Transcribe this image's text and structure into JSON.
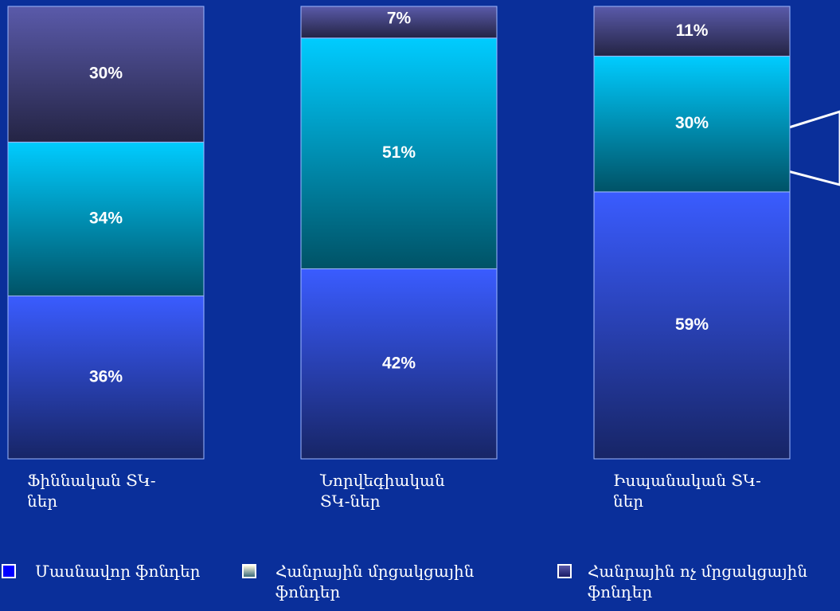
{
  "chart_data": {
    "type": "stacked_bar",
    "categories": [
      "Ֆիննական ՏԿ-ներ",
      "Նորվեգիական ՏԿ-ներ",
      "Իսպանական ՏԿ-ներ"
    ],
    "ylim": [
      0,
      100
    ],
    "series": [
      {
        "name": "Մասնավոր ֆոնդեր",
        "color": "#3a5cff",
        "values": [
          36,
          42,
          59
        ],
        "value_labels": [
          "36%",
          "42%",
          "59%"
        ]
      },
      {
        "name": "Հանրային մրցակցային ֆոնդեր",
        "color": "#00ccff",
        "values": [
          34,
          51,
          30
        ],
        "value_labels": [
          "34%",
          "51%",
          "30%"
        ]
      },
      {
        "name": "Հանրային ոչ մրցակցային ֆոնդեր",
        "color": "#5a5aaa",
        "values": [
          30,
          7,
          11
        ],
        "value_labels": [
          "30%",
          "7%",
          "11%"
        ]
      }
    ]
  }
}
